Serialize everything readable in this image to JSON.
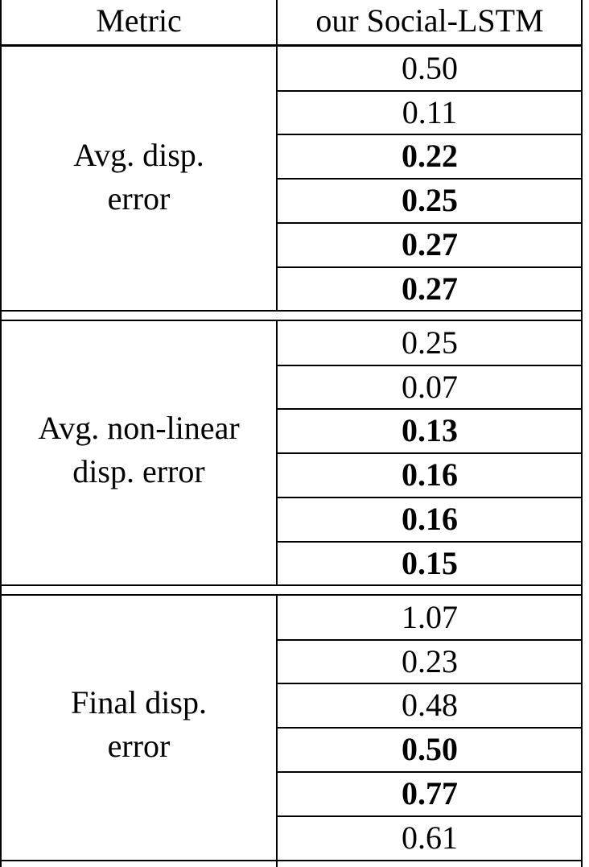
{
  "table": {
    "header": {
      "metric": "Metric",
      "model": "our Social-LSTM"
    },
    "groups": [
      {
        "metric_line1": "Avg. disp.",
        "metric_line2": "error",
        "values": [
          {
            "text": "0.50",
            "bold": false
          },
          {
            "text": "0.11",
            "bold": false
          },
          {
            "text": "0.22",
            "bold": true
          },
          {
            "text": "0.25",
            "bold": true
          },
          {
            "text": "0.27",
            "bold": true
          },
          {
            "text": "0.27",
            "bold": true
          }
        ]
      },
      {
        "metric_line1": "Avg. non-linear",
        "metric_line2": "disp. error",
        "values": [
          {
            "text": "0.25",
            "bold": false
          },
          {
            "text": "0.07",
            "bold": false
          },
          {
            "text": "0.13",
            "bold": true
          },
          {
            "text": "0.16",
            "bold": true
          },
          {
            "text": "0.16",
            "bold": true
          },
          {
            "text": "0.15",
            "bold": true
          }
        ]
      },
      {
        "metric_line1": "Final disp.",
        "metric_line2": "error",
        "values": [
          {
            "text": "1.07",
            "bold": false
          },
          {
            "text": "0.23",
            "bold": false
          },
          {
            "text": "0.48",
            "bold": false
          },
          {
            "text": "0.50",
            "bold": true
          },
          {
            "text": "0.77",
            "bold": true
          },
          {
            "text": "0.61",
            "bold": false
          }
        ]
      }
    ]
  }
}
